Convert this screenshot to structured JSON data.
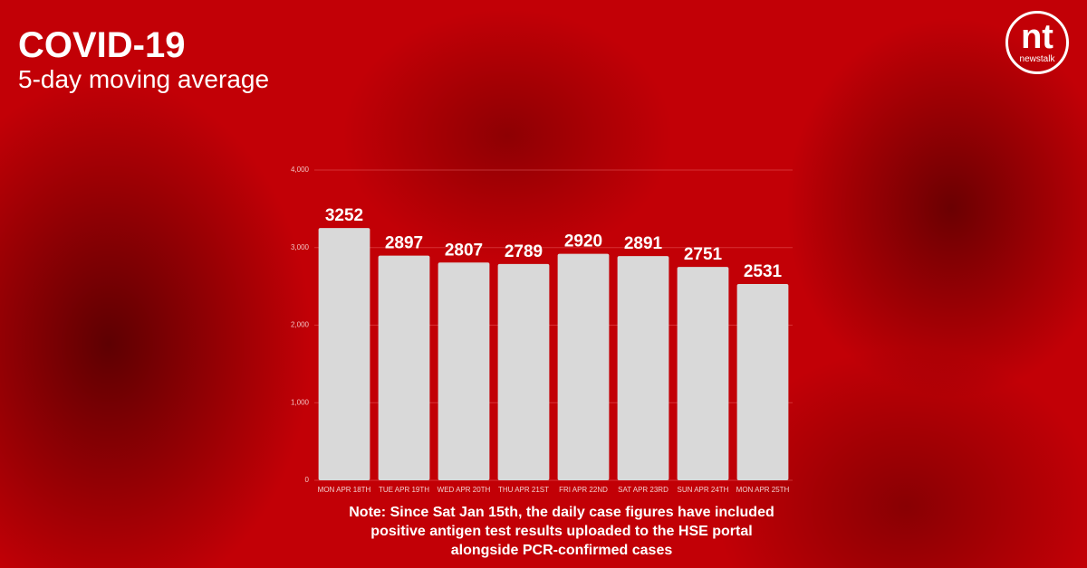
{
  "chart_data": {
    "type": "bar",
    "title": "COVID-19",
    "subtitle": "5-day moving average",
    "categories": [
      "MON APR 18TH",
      "TUE APR 19TH",
      "WED APR 20TH",
      "THU APR 21ST",
      "FRI APR 22ND",
      "SAT APR 23RD",
      "SUN APR 24TH",
      "MON APR 25TH"
    ],
    "values": [
      3252,
      2897,
      2807,
      2789,
      2920,
      2891,
      2751,
      2531
    ],
    "color": "#d9d9d9",
    "ylim": [
      0,
      4000
    ],
    "yticks": [
      0,
      {
        "value": 1000,
        "label": "1,000"
      },
      {
        "value": 2000,
        "label": "2,000"
      },
      {
        "value": 3000,
        "label": "3,000"
      },
      {
        "value": 4000,
        "label": "4,000"
      }
    ],
    "grid": true,
    "note": "Note: Since Sat Jan 15th, the daily case figures have included positive antigen test results uploaded to the HSE portal alongside PCR-confirmed cases"
  },
  "logo": {
    "mark": "nt",
    "name": "newstalk"
  }
}
